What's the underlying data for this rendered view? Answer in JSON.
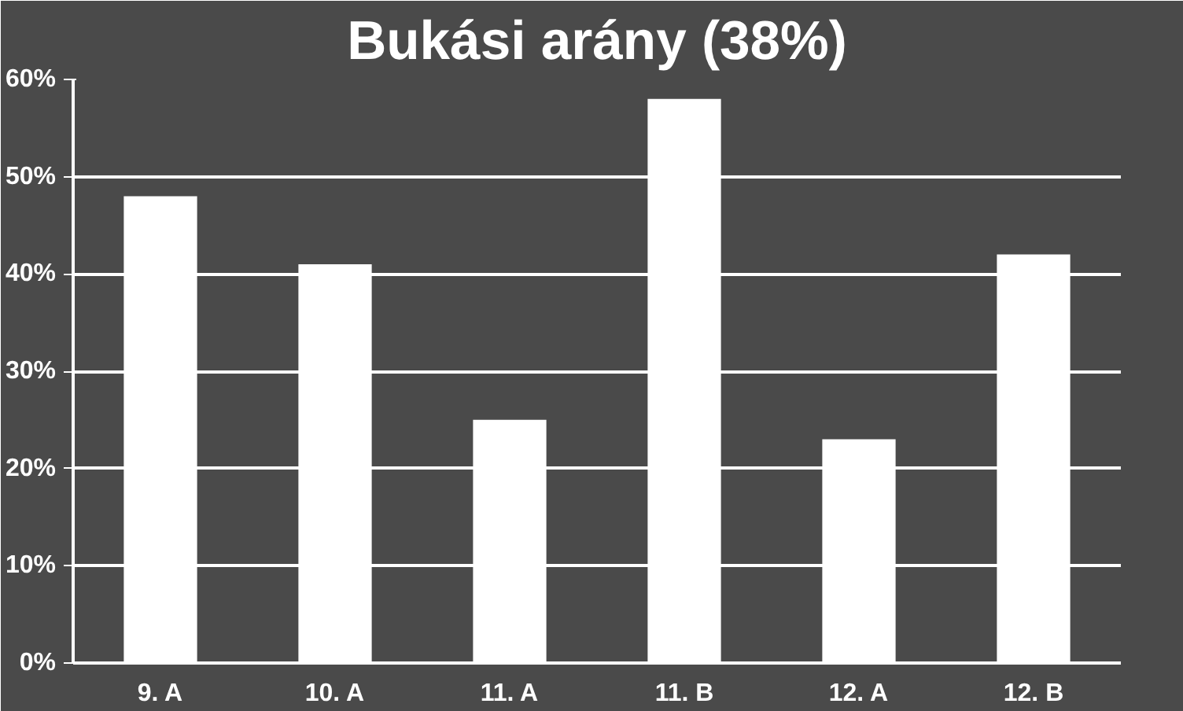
{
  "chart_data": {
    "type": "bar",
    "title": "Bukási arány (38%)",
    "categories": [
      "9. A",
      "10. A",
      "11. A",
      "11. B",
      "12. A",
      "12. B"
    ],
    "values": [
      0.48,
      0.41,
      0.25,
      0.58,
      0.23,
      0.42
    ],
    "color": "#ffffff",
    "ylim": [
      0,
      0.6
    ],
    "yticks": [
      {
        "value": 0,
        "label": "0%"
      },
      {
        "value": 0.1,
        "label": "10%"
      },
      {
        "value": 0.2,
        "label": "20%"
      },
      {
        "value": 0.3,
        "label": "30%"
      },
      {
        "value": 0.4,
        "label": "40%"
      },
      {
        "value": 0.5,
        "label": "50%"
      },
      {
        "value": 0.6,
        "label": "60%"
      }
    ],
    "grid": "y"
  }
}
